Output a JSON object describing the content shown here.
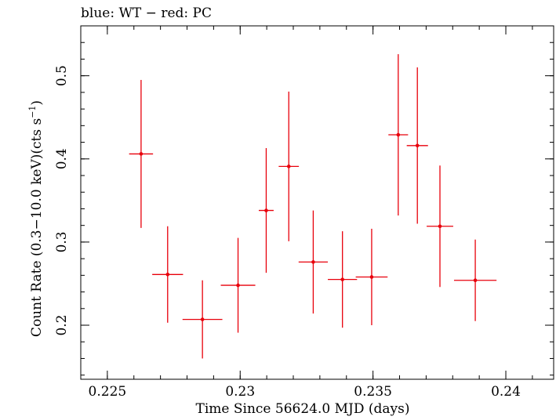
{
  "chart_data": {
    "type": "scatter",
    "title": "blue: WT − red: PC",
    "xlabel": "Time Since 56624.0 MJD (days)",
    "ylabel_main": "Count Rate (0.3−10.0 keV)(cts s",
    "ylabel_sup": "−1",
    "ylabel_close": ")",
    "xlim": [
      0.224,
      0.2418
    ],
    "ylim": [
      0.135,
      0.56
    ],
    "x_ticks": [
      {
        "value": 0.225,
        "label": "0.225"
      },
      {
        "value": 0.23,
        "label": "0.23"
      },
      {
        "value": 0.235,
        "label": "0.235"
      },
      {
        "value": 0.24,
        "label": "0.24"
      }
    ],
    "x_minor_step": 0.001,
    "y_ticks": [
      {
        "value": 0.2,
        "label": "0.2"
      },
      {
        "value": 0.3,
        "label": "0.3"
      },
      {
        "value": 0.4,
        "label": "0.4"
      },
      {
        "value": 0.5,
        "label": "0.5"
      }
    ],
    "y_minor_step": 0.02,
    "series": [
      {
        "name": "PC",
        "color": "#e8000b",
        "points": [
          {
            "x": 0.22627,
            "y": 0.406,
            "xerr": 0.00045,
            "yerr_low": 0.089,
            "yerr_high": 0.089
          },
          {
            "x": 0.22727,
            "y": 0.261,
            "xerr": 0.00058,
            "yerr_low": 0.058,
            "yerr_high": 0.058
          },
          {
            "x": 0.22858,
            "y": 0.207,
            "xerr": 0.00075,
            "yerr_low": 0.047,
            "yerr_high": 0.047
          },
          {
            "x": 0.22992,
            "y": 0.248,
            "xerr": 0.00065,
            "yerr_low": 0.057,
            "yerr_high": 0.057
          },
          {
            "x": 0.23098,
            "y": 0.338,
            "xerr": 0.00028,
            "yerr_low": 0.075,
            "yerr_high": 0.075
          },
          {
            "x": 0.23183,
            "y": 0.391,
            "xerr": 0.00038,
            "yerr_low": 0.09,
            "yerr_high": 0.09
          },
          {
            "x": 0.23275,
            "y": 0.276,
            "xerr": 0.00055,
            "yerr_low": 0.062,
            "yerr_high": 0.062
          },
          {
            "x": 0.23385,
            "y": 0.255,
            "xerr": 0.00055,
            "yerr_low": 0.058,
            "yerr_high": 0.058
          },
          {
            "x": 0.23495,
            "y": 0.258,
            "xerr": 0.0006,
            "yerr_low": 0.058,
            "yerr_high": 0.058
          },
          {
            "x": 0.23595,
            "y": 0.429,
            "xerr": 0.00037,
            "yerr_low": 0.097,
            "yerr_high": 0.097
          },
          {
            "x": 0.23667,
            "y": 0.416,
            "xerr": 0.0004,
            "yerr_low": 0.094,
            "yerr_high": 0.094
          },
          {
            "x": 0.23752,
            "y": 0.319,
            "xerr": 0.0005,
            "yerr_low": 0.073,
            "yerr_high": 0.073
          },
          {
            "x": 0.23885,
            "y": 0.254,
            "xerr": 0.0008,
            "yerr_low": 0.049,
            "yerr_high": 0.049
          }
        ]
      }
    ]
  }
}
